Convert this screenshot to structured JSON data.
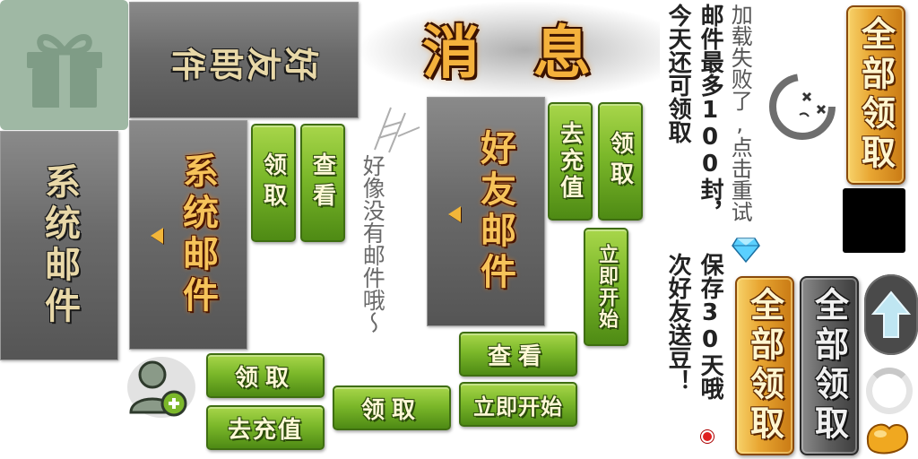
{
  "title": "消息",
  "tabs": {
    "friend_mail_top": "好友邮件",
    "system_mail_inactive": "系统邮件",
    "system_mail_active": "系统邮件",
    "friend_mail_active": "好友邮件"
  },
  "buttons": {
    "claim_v1": "领取",
    "view_v1": "查看",
    "recharge_v": "去充值",
    "claim_v2": "领取",
    "start_now_v": "立即开始",
    "view_h": "查看",
    "start_now_h": "立即开始",
    "claim_h1": "领取",
    "recharge_h": "去充值",
    "claim_h2": "领取",
    "claim_all_1": "全部领取",
    "claim_all_2": "全部领取",
    "claim_all_3": "全部领取"
  },
  "messages": {
    "no_mail": "好像没有邮件哦～",
    "load_failed": "加载失败了,点击重试",
    "mail_limit_line1": "邮件最多100封，",
    "mail_limit_line2": "今天还可领取",
    "keep_days_line1": "保存30天哦",
    "keep_days_line2": "次好友送豆！"
  },
  "icons": {
    "gift": "gift-icon",
    "add_friend": "add-friend-icon",
    "diamond": "diamond-icon",
    "sad_face": "dizzy-face-icon",
    "up_arrow": "up-arrow-icon",
    "loading": "loading-ring-icon",
    "bean": "golden-bean-icon",
    "red_dot": "red-dot-icon"
  },
  "colors": {
    "green_button": "#7bb82a",
    "orange_button": "#e8a632",
    "active_tab_text": "#f6c35a",
    "gift_tile": "#9fb8a4"
  }
}
